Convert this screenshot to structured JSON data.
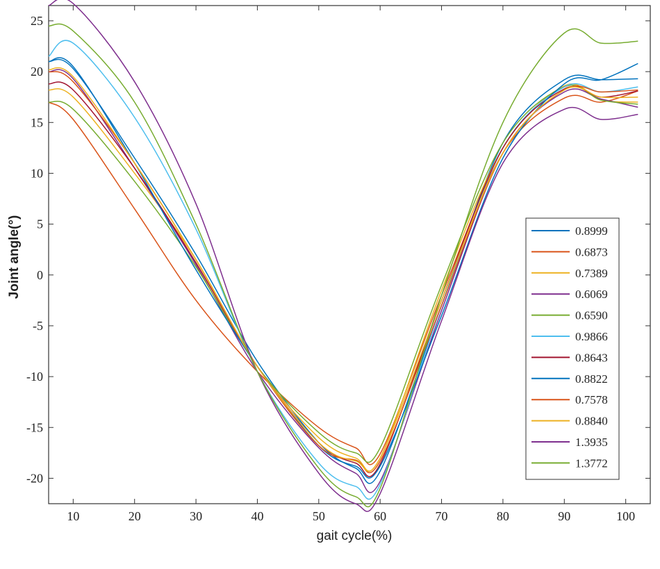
{
  "chart_data": {
    "type": "line",
    "title": "",
    "xlabel": "gait cycle(%)",
    "ylabel": "Joint angle(°)",
    "xlim": [
      6,
      104
    ],
    "ylim": [
      -22.5,
      26.5
    ],
    "xticks": [
      10,
      20,
      30,
      40,
      50,
      60,
      70,
      80,
      90,
      100
    ],
    "yticks": [
      25,
      20,
      15,
      10,
      5,
      0,
      -5,
      -10,
      -15,
      -20
    ],
    "grid": false,
    "legend_position": "right",
    "x": [
      6,
      10,
      20,
      30,
      40,
      50,
      56,
      60,
      70,
      80,
      90,
      96,
      102
    ],
    "series": [
      {
        "name": "0.8999",
        "color": "#0072BD",
        "values": [
          21.0,
          20.3,
          11.5,
          2.0,
          -8.5,
          -16.5,
          -19.0,
          -19.3,
          -3.0,
          13.0,
          19.2,
          19.2,
          19.3
        ]
      },
      {
        "name": "0.6873",
        "color": "#D95319",
        "values": [
          17.0,
          15.3,
          6.5,
          -2.5,
          -9.5,
          -15.0,
          -17.0,
          -17.6,
          -2.0,
          12.0,
          17.4,
          17.0,
          18.1
        ]
      },
      {
        "name": "0.7389",
        "color": "#EDB120",
        "values": [
          18.2,
          17.5,
          10.0,
          1.5,
          -9.0,
          -16.0,
          -18.0,
          -18.0,
          -1.5,
          12.5,
          18.6,
          17.2,
          17.0
        ]
      },
      {
        "name": "0.6069",
        "color": "#7E2F8E",
        "values": [
          20.0,
          19.3,
          10.5,
          1.0,
          -9.5,
          -17.0,
          -19.5,
          -20.3,
          -3.5,
          12.0,
          18.0,
          17.3,
          16.5
        ]
      },
      {
        "name": "0.6590",
        "color": "#77AC30",
        "values": [
          17.0,
          16.3,
          9.2,
          0.8,
          -9.0,
          -15.5,
          -17.5,
          -17.0,
          -1.0,
          13.0,
          18.5,
          17.2,
          16.8
        ]
      },
      {
        "name": "0.9866",
        "color": "#4DBEEE",
        "values": [
          21.5,
          22.8,
          15.5,
          4.5,
          -9.5,
          -18.5,
          -20.8,
          -20.6,
          -3.0,
          12.5,
          18.5,
          18.0,
          18.5
        ]
      },
      {
        "name": "0.8643",
        "color": "#A2142F",
        "values": [
          18.8,
          18.2,
          10.5,
          1.2,
          -9.0,
          -16.5,
          -18.5,
          -18.6,
          -2.5,
          12.5,
          18.3,
          17.5,
          18.1
        ]
      },
      {
        "name": "0.8822",
        "color": "#0072BD",
        "values": [
          21.0,
          20.5,
          11.0,
          0.5,
          -9.0,
          -16.8,
          -18.8,
          -18.8,
          -4.0,
          11.5,
          18.8,
          19.2,
          20.8
        ]
      },
      {
        "name": "0.7578",
        "color": "#D95319",
        "values": [
          20.0,
          19.0,
          11.0,
          1.5,
          -9.0,
          -16.8,
          -18.2,
          -18.3,
          -3.0,
          12.0,
          18.2,
          18.0,
          18.2
        ]
      },
      {
        "name": "0.8840",
        "color": "#EDB120",
        "values": [
          20.2,
          19.5,
          11.0,
          1.5,
          -9.0,
          -16.5,
          -18.3,
          -18.0,
          -2.5,
          12.0,
          18.2,
          17.5,
          17.5
        ]
      },
      {
        "name": "1.3935",
        "color": "#7E2F8E",
        "values": [
          26.5,
          26.7,
          19.0,
          7.0,
          -9.5,
          -19.5,
          -22.5,
          -21.5,
          -4.5,
          11.0,
          16.3,
          15.3,
          15.8
        ]
      },
      {
        "name": "1.3772",
        "color": "#77AC30",
        "values": [
          24.5,
          24.0,
          17.0,
          5.0,
          -9.5,
          -19.0,
          -21.8,
          -21.0,
          -2.0,
          15.0,
          23.8,
          22.8,
          23.0
        ]
      }
    ]
  }
}
